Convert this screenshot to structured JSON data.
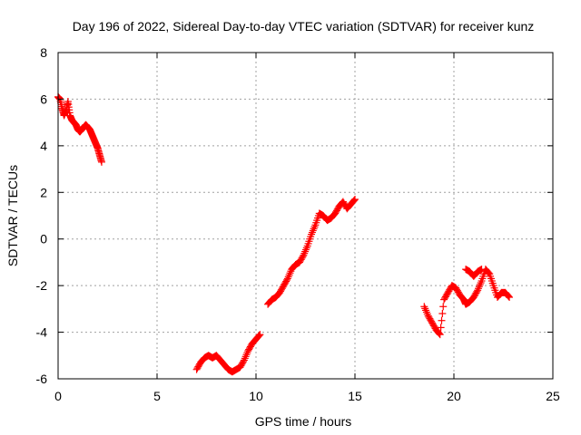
{
  "chart_data": {
    "type": "scatter",
    "title": "Day 196 of 2022, Sidereal Day-to-day VTEC variation (SDTVAR) for receiver kunz",
    "xlabel": "GPS time / hours",
    "ylabel": "SDTVAR / TECUs",
    "xlim": [
      0,
      25
    ],
    "ylim": [
      -6,
      8
    ],
    "xticks": [
      0,
      5,
      10,
      15,
      20,
      25
    ],
    "yticks": [
      -6,
      -4,
      -2,
      0,
      2,
      4,
      6,
      8
    ],
    "grid": true,
    "marker": "plus",
    "color": "#ff0000",
    "series": [
      {
        "x": [
          0.0,
          0.1,
          0.2,
          0.3,
          0.4,
          0.5,
          0.6,
          0.7,
          0.8,
          0.9,
          1.0,
          1.1,
          1.2,
          1.3,
          1.4,
          1.5,
          1.6,
          1.7,
          1.8,
          1.9,
          2.0,
          2.1,
          2.2
        ],
        "y": [
          6.1,
          6.0,
          5.6,
          5.3,
          5.5,
          5.9,
          5.3,
          5.1,
          5.0,
          4.9,
          4.7,
          4.6,
          4.7,
          4.8,
          4.9,
          4.8,
          4.7,
          4.5,
          4.3,
          4.1,
          3.9,
          3.6,
          3.3
        ]
      },
      {
        "x": [
          7.0,
          7.2,
          7.4,
          7.6,
          7.8,
          8.0,
          8.2,
          8.4,
          8.6,
          8.8,
          9.0,
          9.2,
          9.4,
          9.6,
          9.8,
          10.0,
          10.2
        ],
        "y": [
          -5.6,
          -5.3,
          -5.1,
          -5.0,
          -5.1,
          -5.0,
          -5.2,
          -5.4,
          -5.6,
          -5.7,
          -5.6,
          -5.5,
          -5.2,
          -4.8,
          -4.5,
          -4.3,
          -4.1
        ]
      },
      {
        "x": [
          10.6,
          10.8,
          11.0,
          11.2,
          11.4,
          11.6,
          11.8,
          12.0,
          12.2,
          12.4,
          12.6,
          12.8,
          13.0,
          13.2,
          13.4,
          13.6,
          13.8,
          14.0,
          14.2,
          14.4,
          14.6,
          14.8,
          15.0
        ],
        "y": [
          -2.8,
          -2.6,
          -2.5,
          -2.3,
          -2.0,
          -1.7,
          -1.3,
          -1.1,
          -1.0,
          -0.7,
          -0.3,
          0.2,
          0.6,
          1.1,
          1.0,
          0.8,
          0.9,
          1.1,
          1.4,
          1.6,
          1.3,
          1.5,
          1.7
        ]
      },
      {
        "x": [
          18.5,
          18.7,
          18.9,
          19.1,
          19.3,
          19.5,
          19.7,
          19.9,
          20.1,
          20.3,
          20.5,
          20.6,
          20.8,
          21.0,
          21.2,
          21.4,
          21.6,
          21.8,
          22.0,
          22.2,
          22.4,
          22.6,
          22.8
        ],
        "y": [
          -2.9,
          -3.3,
          -3.6,
          -3.9,
          -4.1,
          -2.6,
          -2.3,
          -2.0,
          -2.1,
          -2.4,
          -2.6,
          -2.8,
          -2.7,
          -2.5,
          -2.2,
          -1.8,
          -1.3,
          -1.5,
          -2.0,
          -2.5,
          -2.3,
          -2.3,
          -2.5
        ]
      },
      {
        "x": [
          20.6,
          20.8,
          21.0,
          21.2,
          21.4
        ],
        "y": [
          -1.3,
          -1.4,
          -1.6,
          -1.4,
          -1.3
        ]
      }
    ]
  }
}
